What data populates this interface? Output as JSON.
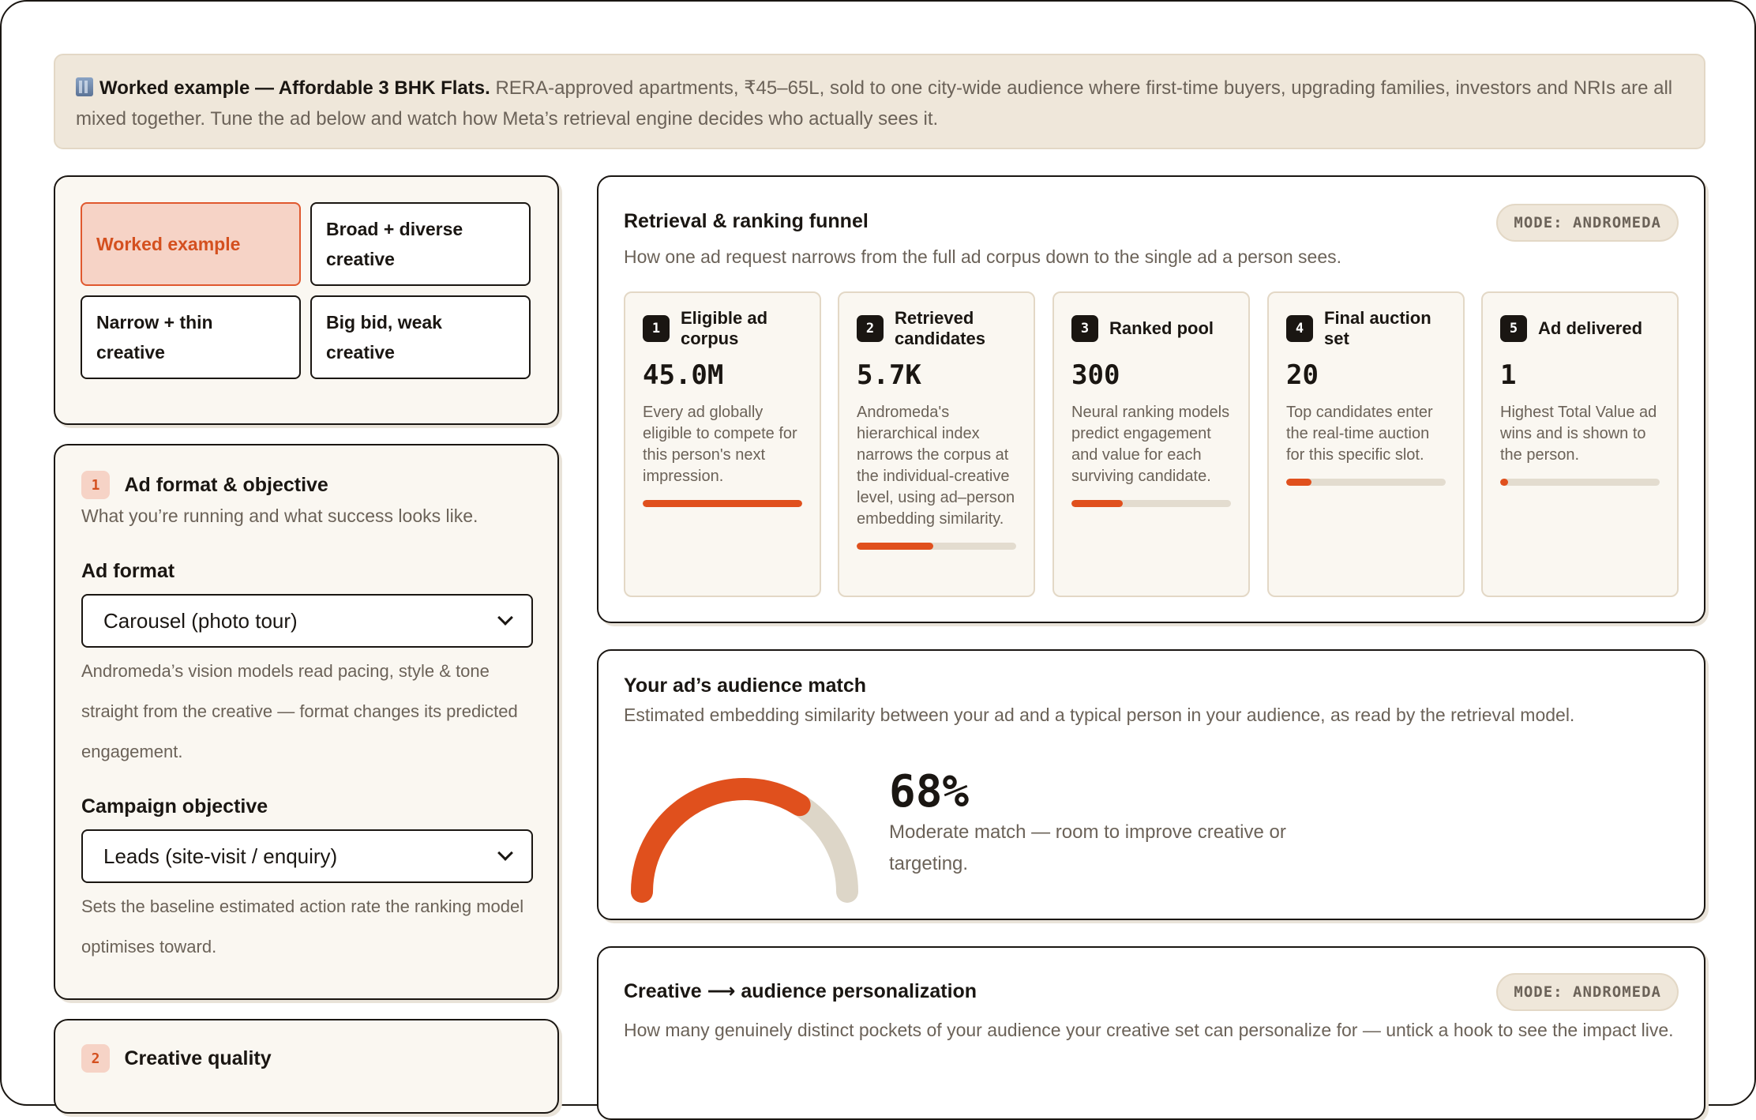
{
  "banner": {
    "title": "Worked example — Affordable 3 BHK Flats.",
    "text": "RERA-approved apartments, ₹45–65L, sold to one city-wide audience where first-time buyers, upgrading families, investors and NRIs are all mixed together. Tune the ad below and watch how Meta’s retrieval engine decides who actually sees it."
  },
  "presets": [
    {
      "label": "Worked example",
      "active": true
    },
    {
      "label": "Broad + diverse creative",
      "active": false
    },
    {
      "label": "Narrow + thin creative",
      "active": false
    },
    {
      "label": "Big bid, weak creative",
      "active": false
    }
  ],
  "section1": {
    "step": "1",
    "title": "Ad format & objective",
    "subtitle": "What you’re running and what success looks like.",
    "ad_format_label": "Ad format",
    "ad_format_value": "Carousel (photo tour)",
    "ad_format_help": "Andromeda’s vision models read pacing, style & tone straight from the creative — format changes its predicted engagement.",
    "objective_label": "Campaign objective",
    "objective_value": "Leads (site-visit / enquiry)",
    "objective_help": "Sets the baseline estimated action rate the ranking model optimises toward."
  },
  "section2": {
    "step": "2",
    "title": "Creative quality"
  },
  "funnel": {
    "title": "Retrieval & ranking funnel",
    "subtitle": "How one ad request narrows from the full ad corpus down to the single ad a person sees.",
    "mode": "MODE: ANDROMEDA",
    "stages": [
      {
        "num": "1",
        "name": "Eligible ad corpus",
        "value": "45.0M",
        "desc": "Every ad globally eligible to compete for this person's next impression.",
        "fill": 1.0
      },
      {
        "num": "2",
        "name": "Retrieved candidates",
        "value": "5.7K",
        "desc": "Andromeda's hierarchical index narrows the corpus at the individual-creative level, using ad–person embedding similarity.",
        "fill": 0.48
      },
      {
        "num": "3",
        "name": "Ranked pool",
        "value": "300",
        "desc": "Neural ranking models predict engagement and value for each surviving candidate.",
        "fill": 0.32
      },
      {
        "num": "4",
        "name": "Final auction set",
        "value": "20",
        "desc": "Top candidates enter the real-time auction for this specific slot.",
        "fill": 0.16
      },
      {
        "num": "5",
        "name": "Ad delivered",
        "value": "1",
        "desc": "Highest Total Value ad wins and is shown to the person.",
        "fill": 0.05
      }
    ]
  },
  "match": {
    "title": "Your ad’s audience match",
    "subtitle": "Estimated embedding similarity between your ad and a typical person in your audience, as read by the retrieval model.",
    "percent_label": "68%",
    "percent": 0.68,
    "desc": "Moderate match — room to improve creative or targeting.",
    "color_fill": "#e0501d",
    "color_track": "#ddd6c8"
  },
  "personalization": {
    "title": "Creative ⟶ audience personalization",
    "mode": "MODE: ANDROMEDA",
    "subtitle": "How many genuinely distinct pockets of your audience your creative set can personalize for — untick a hook to see the impact live."
  }
}
